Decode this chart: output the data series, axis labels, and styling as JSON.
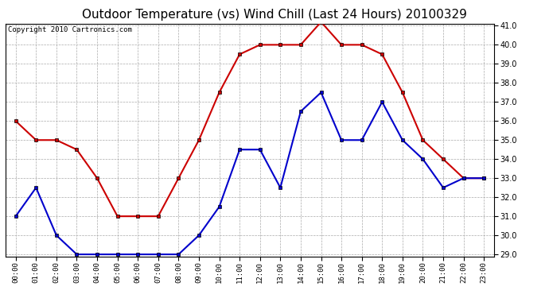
{
  "title": "Outdoor Temperature (vs) Wind Chill (Last 24 Hours) 20100329",
  "copyright": "Copyright 2010 Cartronics.com",
  "x_labels": [
    "00:00",
    "01:00",
    "02:00",
    "03:00",
    "04:00",
    "05:00",
    "06:00",
    "07:00",
    "08:00",
    "09:00",
    "10:00",
    "11:00",
    "12:00",
    "13:00",
    "14:00",
    "15:00",
    "16:00",
    "17:00",
    "18:00",
    "19:00",
    "20:00",
    "21:00",
    "22:00",
    "23:00"
  ],
  "red_data": [
    36.0,
    35.0,
    35.0,
    34.5,
    33.0,
    31.0,
    31.0,
    31.0,
    33.0,
    35.0,
    37.5,
    39.5,
    40.0,
    40.0,
    40.0,
    41.2,
    40.0,
    40.0,
    39.5,
    37.5,
    35.0,
    34.0,
    33.0,
    33.0
  ],
  "blue_data": [
    31.0,
    32.5,
    30.0,
    29.0,
    29.0,
    29.0,
    29.0,
    29.0,
    29.0,
    30.0,
    31.5,
    34.5,
    34.5,
    32.5,
    36.5,
    37.5,
    35.0,
    35.0,
    37.0,
    35.0,
    34.0,
    32.5,
    33.0,
    33.0
  ],
  "red_color": "#cc0000",
  "blue_color": "#0000cc",
  "bg_color": "#ffffff",
  "grid_color": "#aaaaaa",
  "ylim": [
    29.0,
    41.0
  ],
  "yticks": [
    29.0,
    30.0,
    31.0,
    32.0,
    33.0,
    34.0,
    35.0,
    36.0,
    37.0,
    38.0,
    39.0,
    40.0,
    41.0
  ],
  "title_fontsize": 11,
  "copyright_fontsize": 6.5,
  "marker_size": 3.5,
  "linewidth": 1.5
}
